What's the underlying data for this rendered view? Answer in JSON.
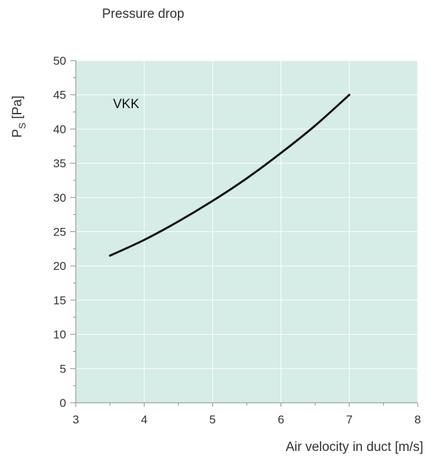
{
  "chart_data": {
    "type": "line",
    "title": "Pressure drop",
    "xlabel": "Air velocity in duct [m/s]",
    "ylabel_main": "P",
    "ylabel_sub": "S",
    "ylabel_unit": " [Pa]",
    "xlim": [
      3,
      8
    ],
    "ylim": [
      0,
      50
    ],
    "x_ticks": [
      3,
      4,
      5,
      6,
      7,
      8
    ],
    "y_ticks": [
      0,
      5,
      10,
      15,
      20,
      25,
      30,
      35,
      40,
      45,
      50
    ],
    "grid": true,
    "colors": {
      "plot_background": "#d6ece6",
      "grid": "#ffffff",
      "line": "#111111",
      "axis": "#8a8a8a"
    },
    "series": [
      {
        "name": "VKK",
        "x": [
          3.5,
          4.0,
          4.5,
          5.0,
          5.5,
          6.0,
          6.5,
          7.0
        ],
        "y": [
          21.5,
          23.8,
          26.5,
          29.5,
          32.8,
          36.5,
          40.5,
          45.0
        ]
      }
    ]
  }
}
